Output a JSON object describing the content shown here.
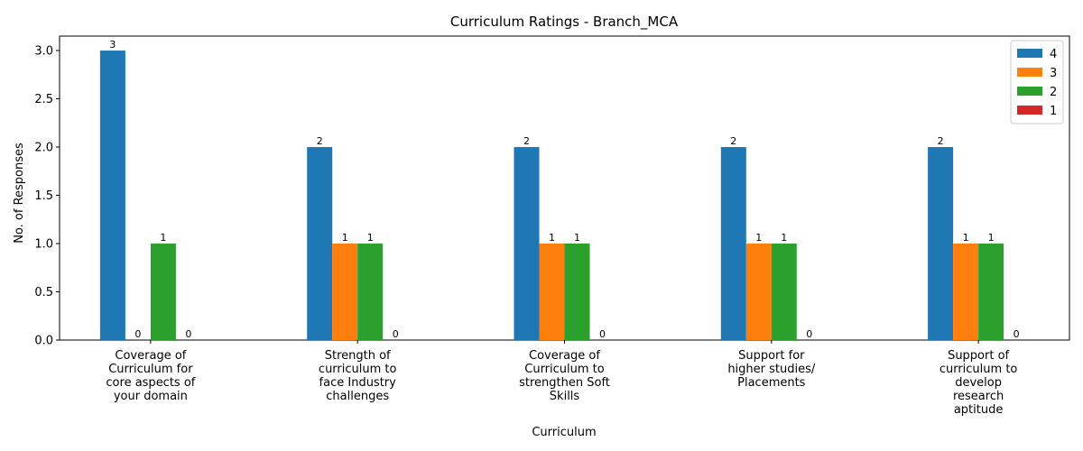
{
  "chart_data": {
    "type": "bar",
    "title": "Curriculum Ratings - Branch_MCA",
    "xlabel": "Curriculum",
    "ylabel": "No. of Responses",
    "categories": [
      [
        "Coverage of",
        "Curriculum for",
        "core aspects of",
        "your domain"
      ],
      [
        "Strength of",
        "curriculum to",
        "face Industry",
        "challenges"
      ],
      [
        "Coverage of",
        "Curriculum to",
        "strengthen Soft",
        "Skills"
      ],
      [
        "Support for",
        "higher studies/",
        "Placements"
      ],
      [
        "Support of",
        "curriculum to",
        "develop",
        "research",
        "aptitude"
      ]
    ],
    "series": [
      {
        "name": "4",
        "color": "#1f77b4",
        "values": [
          3,
          2,
          2,
          2,
          2
        ]
      },
      {
        "name": "3",
        "color": "#ff7f0e",
        "values": [
          0,
          1,
          1,
          1,
          1
        ]
      },
      {
        "name": "2",
        "color": "#2ca02c",
        "values": [
          1,
          1,
          1,
          1,
          1
        ]
      },
      {
        "name": "1",
        "color": "#d62728",
        "values": [
          0,
          0,
          0,
          0,
          0
        ]
      }
    ],
    "ylim": [
      0,
      3.15
    ],
    "yticks": [
      "0.0",
      "0.5",
      "1.0",
      "1.5",
      "2.0",
      "2.5",
      "3.0"
    ],
    "legend_position": "top-right",
    "grid": false
  }
}
